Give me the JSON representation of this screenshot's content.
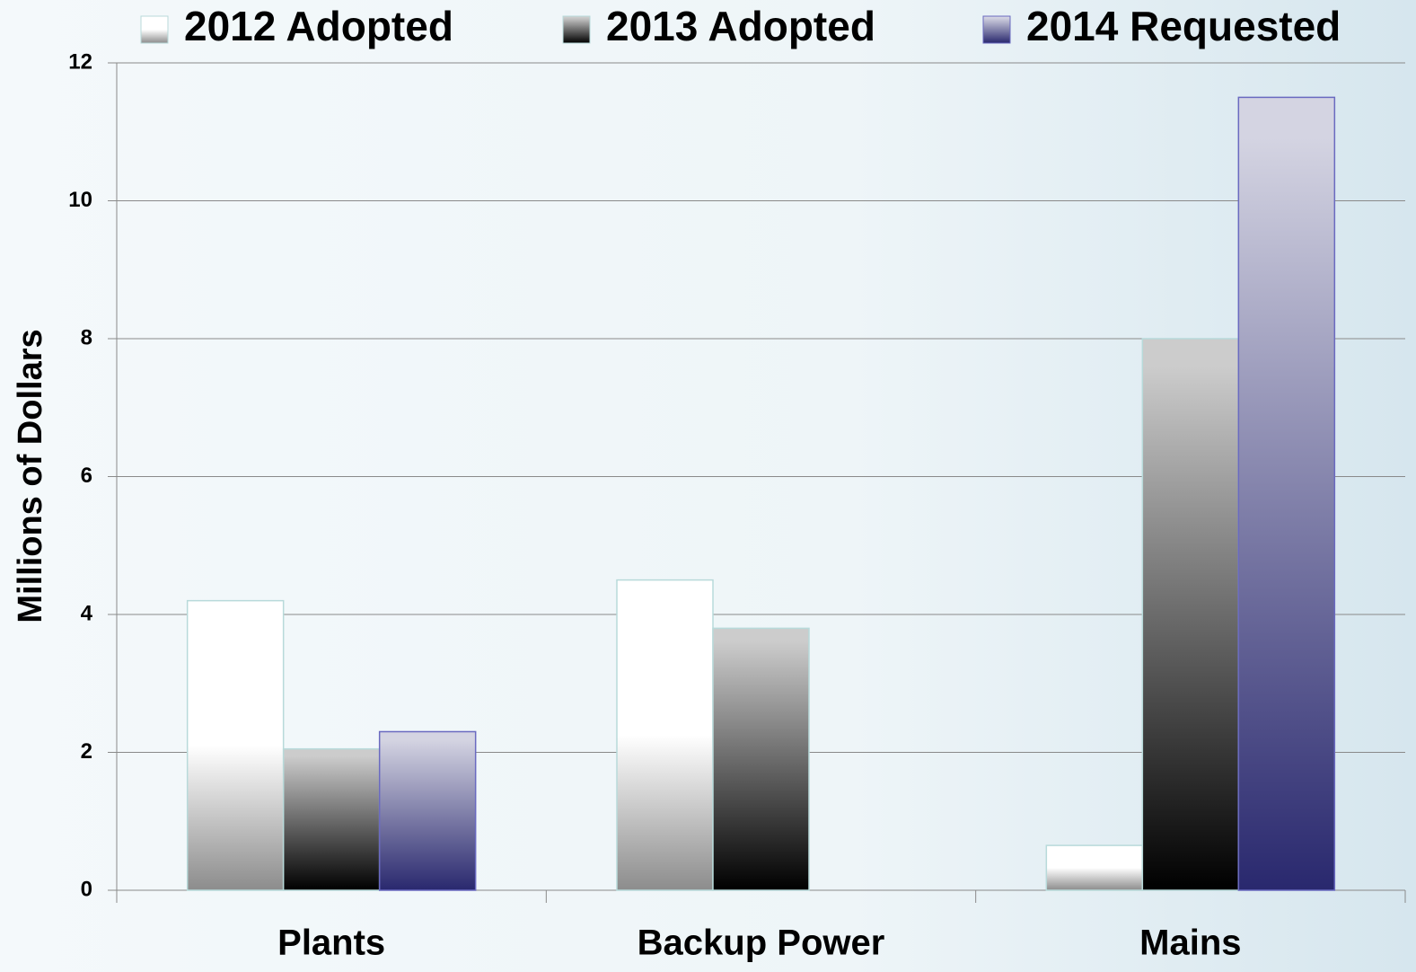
{
  "chart_data": {
    "type": "bar",
    "y_label": "Millions of Dollars",
    "categories": [
      "Plants",
      "Backup Power",
      "Mains"
    ],
    "series": [
      {
        "name": "2012 Adopted",
        "color": "#8c8c8c",
        "values": [
          4.2,
          4.5,
          0.65
        ]
      },
      {
        "name": "2013 Adopted",
        "color": "#000000",
        "values": [
          2.05,
          3.8,
          8
        ]
      },
      {
        "name": "2014 Requested",
        "color": "#29286e",
        "values": [
          2.3,
          null,
          11.5
        ]
      }
    ],
    "ylim": [
      0,
      12
    ],
    "yticks": [
      0,
      2,
      4,
      6,
      8,
      10,
      12
    ],
    "grid": true,
    "legend": "top"
  }
}
